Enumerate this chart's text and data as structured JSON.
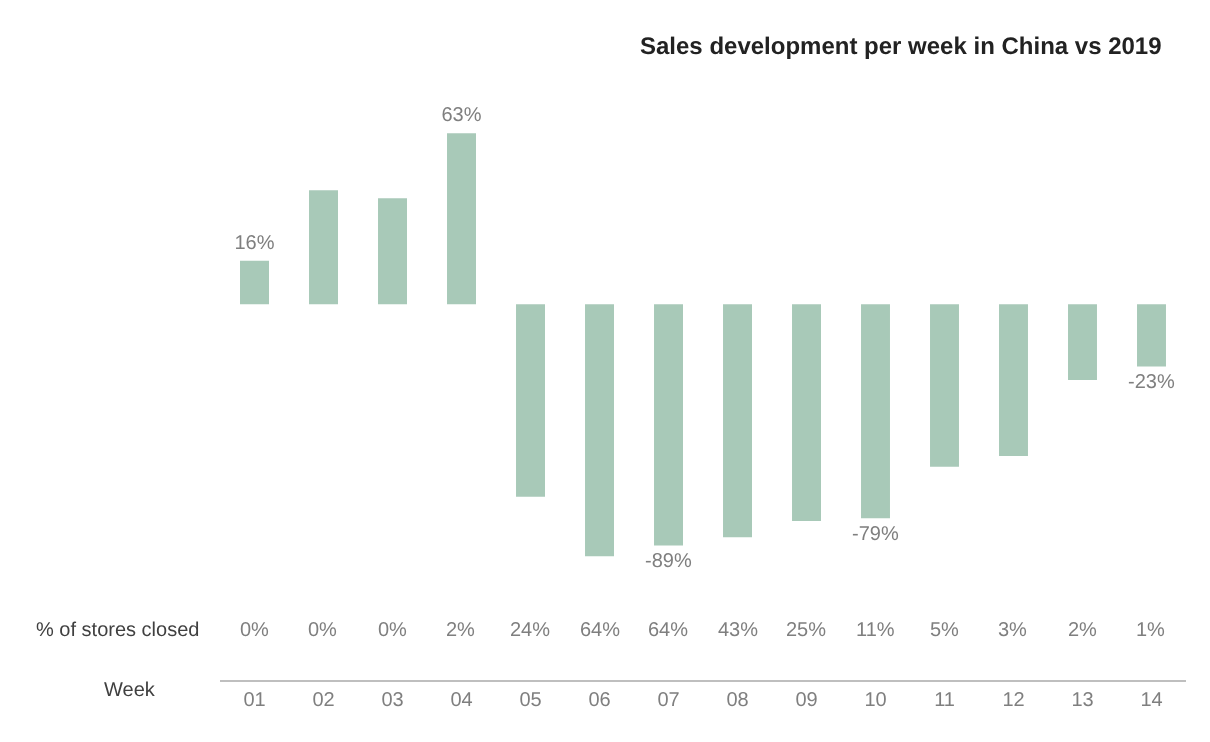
{
  "chart_data": {
    "type": "bar",
    "title": "Sales development per week in China vs 2019",
    "xlabel": "Week",
    "categories": [
      "01",
      "02",
      "03",
      "04",
      "05",
      "06",
      "07",
      "08",
      "09",
      "10",
      "11",
      "12",
      "13",
      "14"
    ],
    "values": [
      16,
      42,
      39,
      63,
      -71,
      -93,
      -89,
      -86,
      -80,
      -79,
      -60,
      -56,
      -28,
      -23
    ],
    "value_labels": [
      "16%",
      null,
      null,
      "63%",
      null,
      null,
      "-89%",
      null,
      null,
      "-79%",
      null,
      null,
      null,
      "-23%"
    ],
    "color": "#a8c9b8",
    "annotations": [
      "% of stores closed",
      "0%",
      "0%",
      "0%",
      "2%",
      "24%",
      "64%",
      "64%",
      "43%",
      "25%",
      "11%",
      "5%",
      "3%",
      "2%",
      "1%"
    ]
  }
}
